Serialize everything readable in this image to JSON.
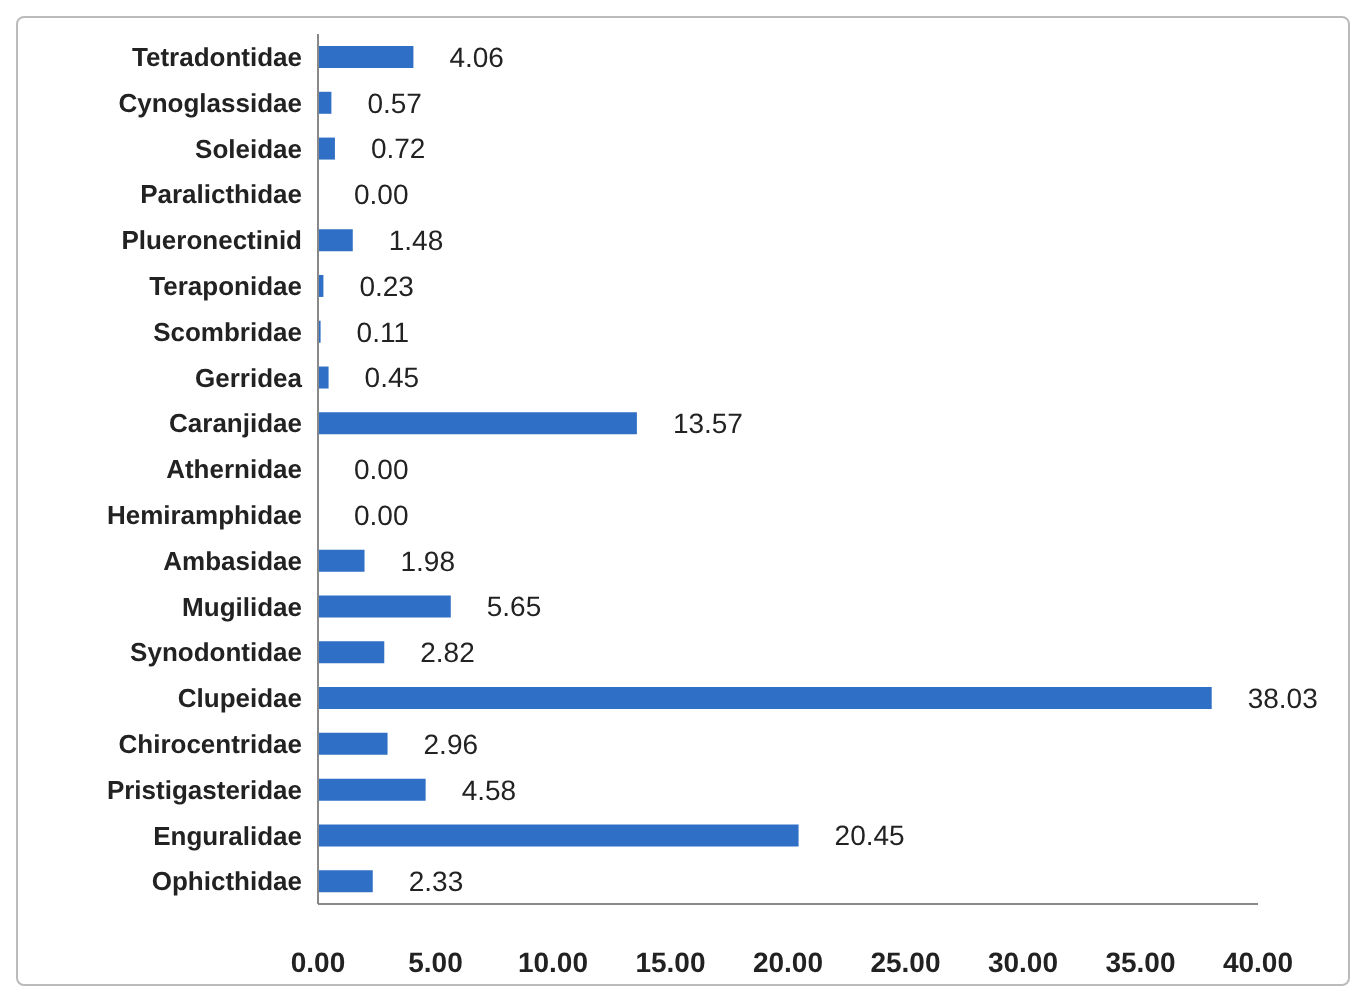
{
  "chart_data": {
    "type": "bar",
    "orientation": "horizontal",
    "categories": [
      "Tetradontidae",
      "Cynoglassidae",
      "Soleidae",
      "Paralicthidae",
      "Plueronectinid",
      "Teraponidae",
      "Scombridae",
      "Gerridea",
      "Caranjidae",
      "Athernidae",
      "Hemiramphidae",
      "Ambasidae",
      "Mugilidae",
      "Synodontidae",
      "Clupeidae",
      "Chirocentridae",
      "Pristigasteridae",
      "Enguralidae",
      "Ophicthidae"
    ],
    "values": [
      4.06,
      0.57,
      0.72,
      0.0,
      1.48,
      0.23,
      0.11,
      0.45,
      13.57,
      0.0,
      0.0,
      1.98,
      5.65,
      2.82,
      38.03,
      2.96,
      4.58,
      20.45,
      2.33
    ],
    "value_labels": [
      "4.06",
      "0.57",
      "0.72",
      "0.00",
      "1.48",
      "0.23",
      "0.11",
      "0.45",
      "13.57",
      "0.00",
      "0.00",
      "1.98",
      "5.65",
      "2.82",
      "38.03",
      "2.96",
      "4.58",
      "20.45",
      "2.33"
    ],
    "color": "#2f6fc6",
    "xlim": [
      0,
      40
    ],
    "xticks": [
      {
        "value": 0,
        "label": "0.00"
      },
      {
        "value": 5,
        "label": "5.00"
      },
      {
        "value": 10,
        "label": "10.00"
      },
      {
        "value": 15,
        "label": "15.00"
      },
      {
        "value": 20,
        "label": "20.00"
      },
      {
        "value": 25,
        "label": "25.00"
      },
      {
        "value": 30,
        "label": "30.00"
      },
      {
        "value": 35,
        "label": "35.00"
      },
      {
        "value": 40,
        "label": "40.00"
      }
    ],
    "grid": false,
    "legend": false
  }
}
